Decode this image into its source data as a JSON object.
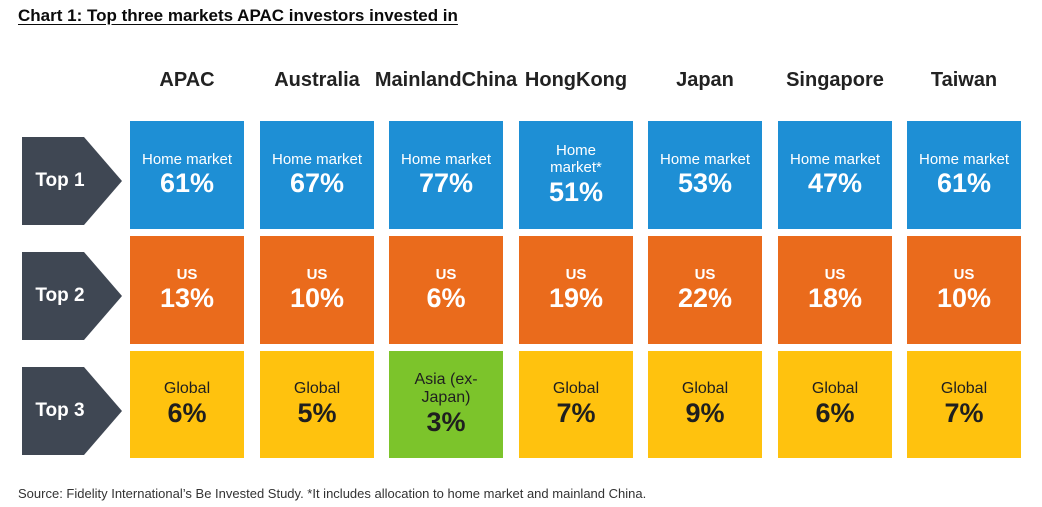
{
  "title": "Chart 1: Top three markets APAC investors invested in",
  "source": "Source: Fidelity International’s Be Invested Study. *It includes allocation to home market and mainland China.",
  "colors": {
    "top1": "#1e8fd5",
    "top2": "#ea6b1c",
    "top3": "#ffc20e",
    "top3_alt": "#7cc42b",
    "arrow": "#3f4753"
  },
  "chart_data": {
    "type": "table",
    "title": "Chart 1: Top three markets APAC investors invested in",
    "columns": [
      {
        "name": "APAC",
        "lines": [
          "APAC"
        ]
      },
      {
        "name": "Australia",
        "lines": [
          "Australia"
        ]
      },
      {
        "name": "Mainland China",
        "lines": [
          "Mainland",
          "China"
        ]
      },
      {
        "name": "Hong Kong",
        "lines": [
          "Hong",
          "Kong"
        ]
      },
      {
        "name": "Japan",
        "lines": [
          "Japan"
        ]
      },
      {
        "name": "Singapore",
        "lines": [
          "Singapore"
        ]
      },
      {
        "name": "Taiwan",
        "lines": [
          "Taiwan"
        ]
      }
    ],
    "rows": [
      {
        "label": "Top 1",
        "cells": [
          {
            "lines": [
              "Home market"
            ],
            "value": "61%"
          },
          {
            "lines": [
              "Home market"
            ],
            "value": "67%"
          },
          {
            "lines": [
              "Home market"
            ],
            "value": "77%"
          },
          {
            "lines": [
              "Home",
              "market*"
            ],
            "value": "51%"
          },
          {
            "lines": [
              "Home market"
            ],
            "value": "53%"
          },
          {
            "lines": [
              "Home market"
            ],
            "value": "47%"
          },
          {
            "lines": [
              "Home market"
            ],
            "value": "61%"
          }
        ]
      },
      {
        "label": "Top 2",
        "cells": [
          {
            "lines": [
              "US"
            ],
            "value": "13%"
          },
          {
            "lines": [
              "US"
            ],
            "value": "10%"
          },
          {
            "lines": [
              "US"
            ],
            "value": "6%"
          },
          {
            "lines": [
              "US"
            ],
            "value": "19%"
          },
          {
            "lines": [
              "US"
            ],
            "value": "22%"
          },
          {
            "lines": [
              "US"
            ],
            "value": "18%"
          },
          {
            "lines": [
              "US"
            ],
            "value": "10%"
          }
        ]
      },
      {
        "label": "Top 3",
        "cells": [
          {
            "lines": [
              "Global"
            ],
            "value": "6%"
          },
          {
            "lines": [
              "Global"
            ],
            "value": "5%"
          },
          {
            "lines": [
              "Asia (ex-",
              "Japan)"
            ],
            "value": "3%",
            "highlight": true
          },
          {
            "lines": [
              "Global"
            ],
            "value": "7%"
          },
          {
            "lines": [
              "Global"
            ],
            "value": "9%"
          },
          {
            "lines": [
              "Global"
            ],
            "value": "6%"
          },
          {
            "lines": [
              "Global"
            ],
            "value": "7%"
          }
        ]
      }
    ]
  }
}
